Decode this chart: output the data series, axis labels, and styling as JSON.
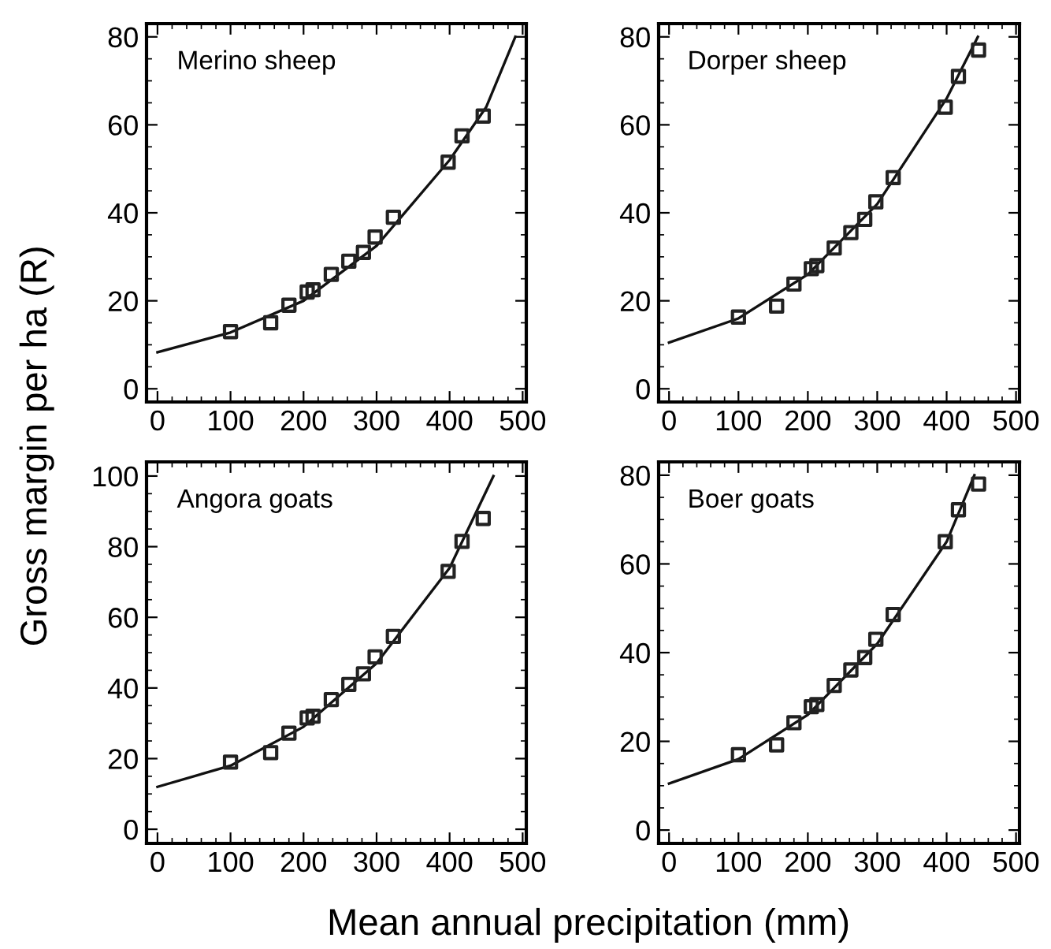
{
  "chart_data": [
    {
      "type": "scatter",
      "title": "Merino sheep",
      "ylabel": "Gross margin per ha (R)",
      "xlabel": "Mean annual precipitation (mm)",
      "xlim": [
        -15,
        505
      ],
      "ylim": [
        -3,
        83
      ],
      "xticks": [
        0,
        100,
        200,
        300,
        400,
        500
      ],
      "yticks": [
        0,
        20,
        40,
        60,
        80
      ],
      "grid": false,
      "legend": false,
      "series": [
        {
          "color": "#222222",
          "marker": "square",
          "x": [
            100,
            155,
            180,
            205,
            213,
            238,
            262,
            282,
            298,
            323,
            398,
            417,
            446
          ],
          "values": [
            13,
            15,
            19,
            22,
            22.5,
            26,
            29,
            31,
            34.5,
            39,
            51.5,
            57.5,
            62
          ]
        },
        {
          "type": "line",
          "color": "#111111",
          "marker": "none",
          "x": [
            0,
            100,
            200,
            300,
            400,
            450,
            490
          ],
          "values": [
            8.3,
            12.8,
            20,
            32.5,
            52,
            64,
            80
          ]
        }
      ]
    },
    {
      "type": "scatter",
      "title": "Dorper sheep",
      "xlim": [
        -15,
        505
      ],
      "ylim": [
        -3,
        83
      ],
      "xticks": [
        0,
        100,
        200,
        300,
        400,
        500
      ],
      "yticks": [
        0,
        20,
        40,
        60,
        80
      ],
      "grid": false,
      "legend": false,
      "series": [
        {
          "color": "#222222",
          "marker": "square",
          "x": [
            100,
            155,
            180,
            205,
            213,
            238,
            262,
            282,
            298,
            323,
            398,
            417,
            446
          ],
          "values": [
            16.3,
            18.8,
            23.8,
            27.3,
            28,
            32,
            35.5,
            38.5,
            42.5,
            48,
            64,
            71,
            77
          ]
        },
        {
          "type": "line",
          "color": "#111111",
          "marker": "none",
          "x": [
            0,
            100,
            200,
            300,
            400,
            445
          ],
          "values": [
            10.5,
            16,
            26,
            42,
            66,
            80
          ]
        }
      ]
    },
    {
      "type": "scatter",
      "title": "Angora goats",
      "xlim": [
        -15,
        505
      ],
      "ylim": [
        -4,
        104
      ],
      "xticks": [
        0,
        100,
        200,
        300,
        400,
        500
      ],
      "yticks": [
        0,
        20,
        40,
        60,
        80,
        100
      ],
      "grid": false,
      "legend": false,
      "series": [
        {
          "color": "#222222",
          "marker": "square",
          "x": [
            100,
            155,
            180,
            205,
            213,
            238,
            262,
            282,
            298,
            323,
            398,
            417,
            446
          ],
          "values": [
            19,
            21.7,
            27.2,
            31.5,
            32,
            36.7,
            41,
            44,
            48.8,
            54.6,
            73,
            81.5,
            88
          ]
        },
        {
          "type": "line",
          "color": "#111111",
          "marker": "none",
          "x": [
            0,
            100,
            200,
            300,
            400,
            460
          ],
          "values": [
            12,
            18,
            29,
            47,
            74,
            100
          ]
        }
      ]
    },
    {
      "type": "scatter",
      "title": "Boer goats",
      "xlim": [
        -15,
        505
      ],
      "ylim": [
        -3,
        83
      ],
      "xticks": [
        0,
        100,
        200,
        300,
        400,
        500
      ],
      "yticks": [
        0,
        20,
        40,
        60,
        80
      ],
      "grid": false,
      "legend": false,
      "series": [
        {
          "color": "#222222",
          "marker": "square",
          "x": [
            100,
            155,
            180,
            205,
            213,
            238,
            262,
            282,
            298,
            323,
            398,
            417,
            446
          ],
          "values": [
            17,
            19.2,
            24.2,
            27.8,
            28.3,
            32.6,
            36.1,
            38.9,
            43,
            48.6,
            65,
            72.2,
            78
          ]
        },
        {
          "type": "line",
          "color": "#111111",
          "marker": "none",
          "x": [
            0,
            100,
            200,
            300,
            400,
            440
          ],
          "values": [
            10.5,
            16,
            26,
            42,
            65,
            80
          ]
        }
      ]
    }
  ]
}
